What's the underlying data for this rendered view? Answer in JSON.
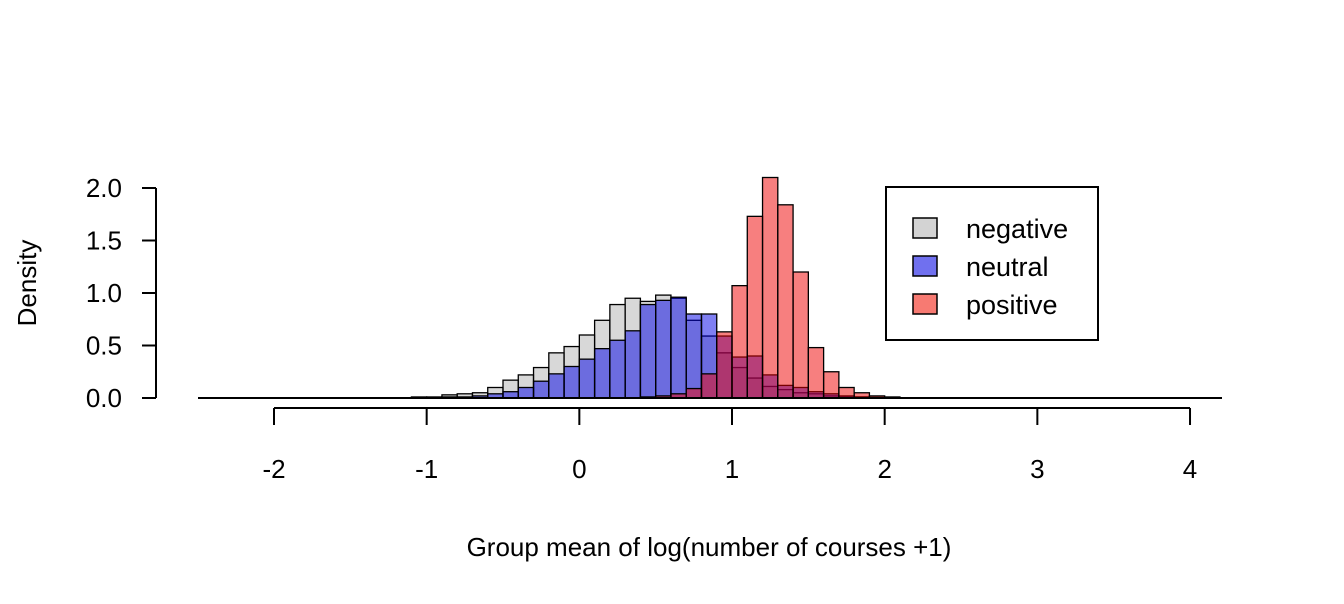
{
  "chart_data": {
    "type": "histogram",
    "xlabel": "Group mean of log(number of courses +1)",
    "ylabel": "Density",
    "xlim": [
      -2,
      4
    ],
    "ylim": [
      0,
      2.0
    ],
    "x_ticks": [
      -2,
      -1,
      0,
      1,
      2,
      3,
      4
    ],
    "x_tick_labels": [
      "-2",
      "-1",
      "0",
      "1",
      "2",
      "3",
      "4"
    ],
    "y_ticks": [
      0,
      0.5,
      1.0,
      1.5,
      2.0
    ],
    "y_tick_labels": [
      "0.0",
      "0.5",
      "1.0",
      "1.5",
      "2.0"
    ],
    "bin_width": 0.1,
    "grid": false,
    "legend": {
      "position": "top-right",
      "entries": [
        {
          "label": "negative",
          "color": "#d3d3d3"
        },
        {
          "label": "neutral",
          "color": "#7070ef"
        },
        {
          "label": "positive",
          "color": "#f77a72"
        }
      ]
    },
    "series": [
      {
        "name": "negative",
        "color": "rgba(190,190,190,0.6)",
        "bins": [
          [
            -1.1,
            0.01
          ],
          [
            -1.0,
            0.01
          ],
          [
            -0.9,
            0.03
          ],
          [
            -0.8,
            0.04
          ],
          [
            -0.7,
            0.05
          ],
          [
            -0.6,
            0.1
          ],
          [
            -0.5,
            0.17
          ],
          [
            -0.4,
            0.22
          ],
          [
            -0.3,
            0.29
          ],
          [
            -0.2,
            0.43
          ],
          [
            -0.1,
            0.49
          ],
          [
            0.0,
            0.6
          ],
          [
            0.1,
            0.74
          ],
          [
            0.2,
            0.89
          ],
          [
            0.3,
            0.95
          ],
          [
            0.4,
            0.92
          ],
          [
            0.5,
            0.98
          ],
          [
            0.6,
            0.95
          ],
          [
            0.7,
            0.74
          ],
          [
            0.8,
            0.59
          ],
          [
            0.9,
            0.43
          ],
          [
            1.0,
            0.29
          ],
          [
            1.1,
            0.19
          ],
          [
            1.2,
            0.11
          ],
          [
            1.3,
            0.08
          ],
          [
            1.4,
            0.05
          ],
          [
            1.5,
            0.04
          ],
          [
            1.6,
            0.02
          ],
          [
            1.7,
            0.01
          ],
          [
            1.8,
            0.01
          ],
          [
            1.9,
            0.005
          ]
        ]
      },
      {
        "name": "neutral",
        "color": "rgba(0,0,230,0.5)",
        "bins": [
          [
            -0.9,
            0.01
          ],
          [
            -0.8,
            0.01
          ],
          [
            -0.7,
            0.02
          ],
          [
            -0.6,
            0.04
          ],
          [
            -0.5,
            0.06
          ],
          [
            -0.4,
            0.1
          ],
          [
            -0.3,
            0.16
          ],
          [
            -0.2,
            0.23
          ],
          [
            -0.1,
            0.3
          ],
          [
            0.0,
            0.37
          ],
          [
            0.1,
            0.47
          ],
          [
            0.2,
            0.55
          ],
          [
            0.3,
            0.64
          ],
          [
            0.4,
            0.89
          ],
          [
            0.5,
            0.93
          ],
          [
            0.6,
            0.96
          ],
          [
            0.7,
            0.8
          ],
          [
            0.8,
            0.8
          ],
          [
            0.9,
            0.59
          ],
          [
            1.0,
            0.39
          ],
          [
            1.1,
            0.4
          ],
          [
            1.2,
            0.22
          ],
          [
            1.3,
            0.12
          ],
          [
            1.4,
            0.1
          ],
          [
            1.5,
            0.06
          ],
          [
            1.6,
            0.04
          ],
          [
            1.7,
            0.02
          ],
          [
            1.8,
            0.01
          ],
          [
            1.9,
            0.005
          ]
        ]
      },
      {
        "name": "positive",
        "color": "rgba(240,0,0,0.5)",
        "bins": [
          [
            0.4,
            0.01
          ],
          [
            0.5,
            0.02
          ],
          [
            0.6,
            0.04
          ],
          [
            0.7,
            0.09
          ],
          [
            0.8,
            0.23
          ],
          [
            0.9,
            0.63
          ],
          [
            1.0,
            1.07
          ],
          [
            1.1,
            1.73
          ],
          [
            1.2,
            2.1
          ],
          [
            1.3,
            1.84
          ],
          [
            1.4,
            1.2
          ],
          [
            1.5,
            0.48
          ],
          [
            1.6,
            0.25
          ],
          [
            1.7,
            0.1
          ],
          [
            1.8,
            0.05
          ],
          [
            1.9,
            0.02
          ],
          [
            2.0,
            0.01
          ]
        ]
      }
    ]
  }
}
